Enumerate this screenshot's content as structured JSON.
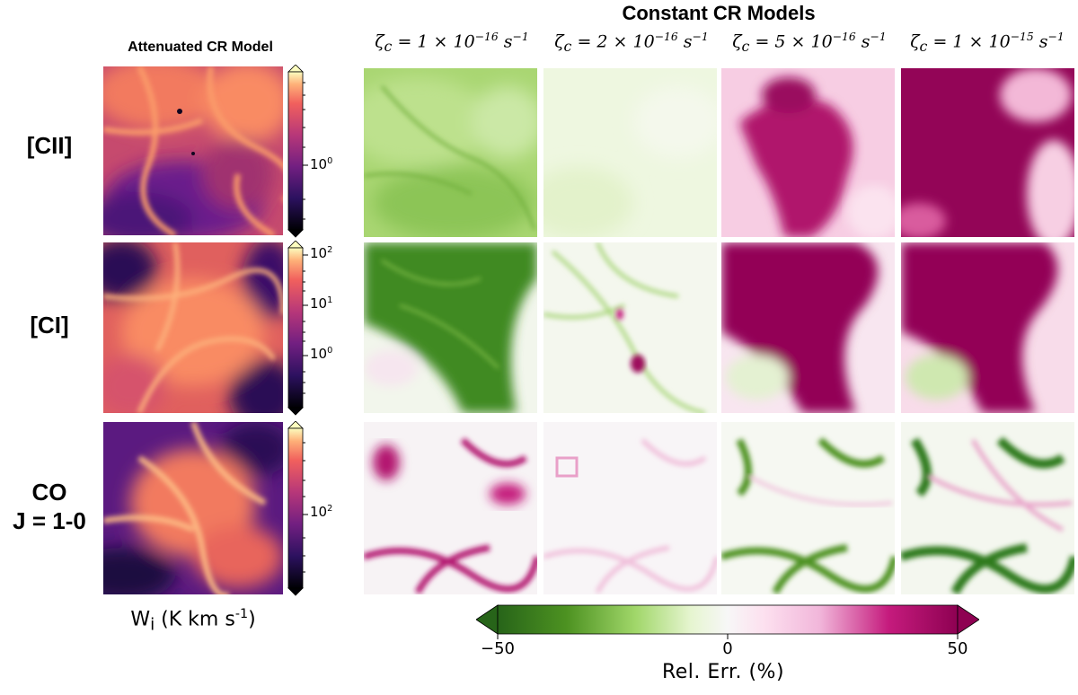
{
  "chart_data": {
    "type": "heatmap",
    "title": "Constant CR Models",
    "left_title": "Attenuated CR Model",
    "rows": [
      "[CII]",
      "[CI]",
      "CO\nJ = 1-0"
    ],
    "row_labels": {
      "cii": "[CII]",
      "ci": "[CI]",
      "co_line1": "CO",
      "co_line2": "J = 1-0"
    },
    "columns": [
      {
        "prefix": "ζ",
        "sub": "c",
        "mid": " = 1 × 10",
        "exp": "−16",
        "unit": " s",
        "unit_exp": "−1"
      },
      {
        "prefix": "ζ",
        "sub": "c",
        "mid": " = 2 × 10",
        "exp": "−16",
        "unit": " s",
        "unit_exp": "−1"
      },
      {
        "prefix": "ζ",
        "sub": "c",
        "mid": " = 5 × 10",
        "exp": "−16",
        "unit": " s",
        "unit_exp": "−1"
      },
      {
        "prefix": "ζ",
        "sub": "c",
        "mid": " = 1 × 10",
        "exp": "−15",
        "unit": " s",
        "unit_exp": "−1"
      }
    ],
    "left_colorbars": [
      {
        "scale": "log",
        "ticks": [
          {
            "base": "10",
            "exp": "0"
          }
        ]
      },
      {
        "scale": "log",
        "ticks": [
          {
            "base": "10",
            "exp": "2"
          },
          {
            "base": "10",
            "exp": "1"
          },
          {
            "base": "10",
            "exp": "0"
          }
        ]
      },
      {
        "scale": "log",
        "ticks": [
          {
            "base": "10",
            "exp": "2"
          }
        ]
      }
    ],
    "left_colorbar_label_main": "W",
    "left_colorbar_label_sub": "i",
    "left_colorbar_label_unit": " (K km s",
    "left_colorbar_label_unit_exp": "-1",
    "left_colorbar_label_close": ")",
    "error_colorbar": {
      "label": "Rel. Err. (%)",
      "range": [
        -50,
        50
      ],
      "ticks": [
        "−50",
        "0",
        "50"
      ],
      "cmap": "PiYG_r"
    },
    "relative_error_qualitative": [
      [
        "moderate-negative",
        "slight-negative",
        "strong-positive",
        "saturated-positive"
      ],
      [
        "strong-negative",
        "mixed-near-zero",
        "strong-positive",
        "strong-positive"
      ],
      [
        "mixed-positive",
        "slight-positive",
        "mixed-negative",
        "strong-negative"
      ]
    ],
    "colors": {
      "magma_dark": "#0b0724",
      "magma_purple": "#51127c",
      "magma_orange": "#f8765c",
      "magma_light": "#fcfdbf",
      "green_dark": "#276419",
      "green_mid": "#7fbc41",
      "neutral": "#f7f7f7",
      "pink_mid": "#de77ae",
      "magenta_dark": "#8e0152"
    }
  }
}
